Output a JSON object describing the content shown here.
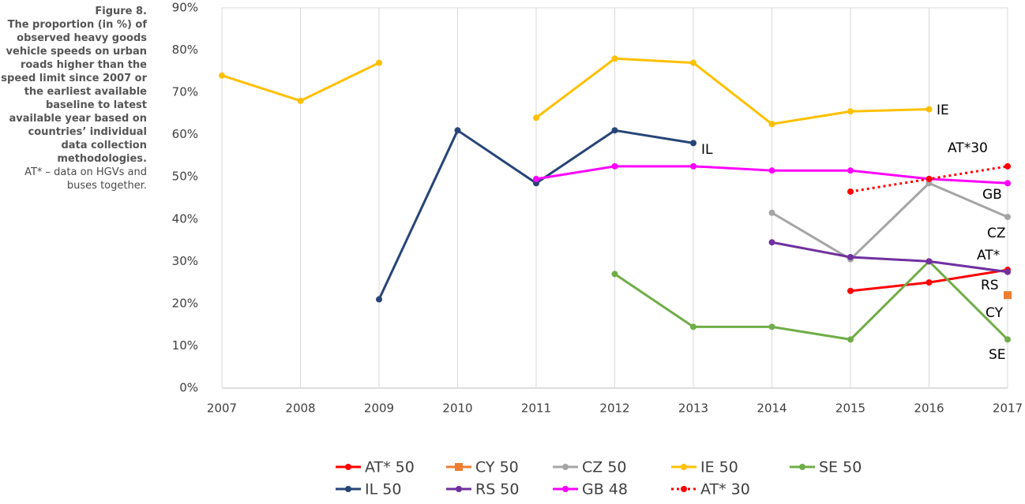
{
  "caption": {
    "label": "Figure 8.",
    "text": "The proportion (in %) of observed heavy goods vehicle speeds on urban roads higher than the speed limit since 2007 or the earliest available baseline to latest available year based on countries’ individual data collection methodologies.",
    "note": "AT* – data on HGVs and buses together."
  },
  "chart_data": {
    "type": "line",
    "categories": [
      "2007",
      "2008",
      "2009",
      "2010",
      "2011",
      "2012",
      "2013",
      "2014",
      "2015",
      "2016",
      "2017"
    ],
    "ylim": [
      0,
      90
    ],
    "yticks": [
      {
        "value": 0,
        "label": "0%"
      },
      {
        "value": 10,
        "label": "10%"
      },
      {
        "value": 20,
        "label": "20%"
      },
      {
        "value": 30,
        "label": "30%"
      },
      {
        "value": 40,
        "label": "40%"
      },
      {
        "value": 50,
        "label": "50%"
      },
      {
        "value": 60,
        "label": "60%"
      },
      {
        "value": 70,
        "label": "70%"
      },
      {
        "value": 80,
        "label": "80%"
      },
      {
        "value": 90,
        "label": "90%"
      }
    ],
    "grid": "x",
    "legend": "bottom",
    "series": [
      {
        "name": "AT* 50",
        "color": "#ff0000",
        "values": [
          null,
          null,
          null,
          null,
          null,
          null,
          null,
          null,
          23,
          25,
          28
        ]
      },
      {
        "name": "CY 50",
        "color": "#ed7d31",
        "marker": "square",
        "values": [
          null,
          null,
          null,
          null,
          null,
          null,
          null,
          null,
          null,
          null,
          22
        ]
      },
      {
        "name": "CZ 50",
        "color": "#a5a5a5",
        "values": [
          null,
          null,
          null,
          null,
          null,
          null,
          null,
          41.5,
          30.5,
          48.5,
          40.5
        ]
      },
      {
        "name": "IE 50",
        "color": "#ffc000",
        "values": [
          74,
          68,
          77,
          null,
          64,
          78,
          77,
          62.5,
          65.5,
          66,
          null
        ]
      },
      {
        "name": "SE 50",
        "color": "#70ad47",
        "values": [
          null,
          null,
          null,
          null,
          null,
          27,
          14.5,
          14.5,
          11.5,
          30,
          11.5
        ]
      },
      {
        "name": "IL 50",
        "color": "#264478",
        "values": [
          null,
          null,
          21,
          61,
          48.5,
          61,
          58,
          null,
          null,
          null,
          null
        ]
      },
      {
        "name": "RS 50",
        "color": "#7030a0",
        "values": [
          null,
          null,
          null,
          null,
          null,
          null,
          null,
          34.5,
          31,
          30,
          27.5
        ]
      },
      {
        "name": "GB 48",
        "color": "#ff00ff",
        "values": [
          null,
          null,
          null,
          null,
          49.5,
          52.5,
          52.5,
          51.5,
          51.5,
          49.5,
          48.5
        ]
      },
      {
        "name": "AT* 30",
        "color": "#ff0000",
        "dash": "dotted",
        "values": [
          null,
          null,
          null,
          null,
          null,
          null,
          null,
          null,
          46.5,
          49.5,
          52.5
        ]
      }
    ],
    "annotations": [
      "IE",
      "IL",
      "AT*30",
      "GB",
      "CZ",
      "AT*",
      "RS",
      "CY",
      "SE"
    ]
  }
}
